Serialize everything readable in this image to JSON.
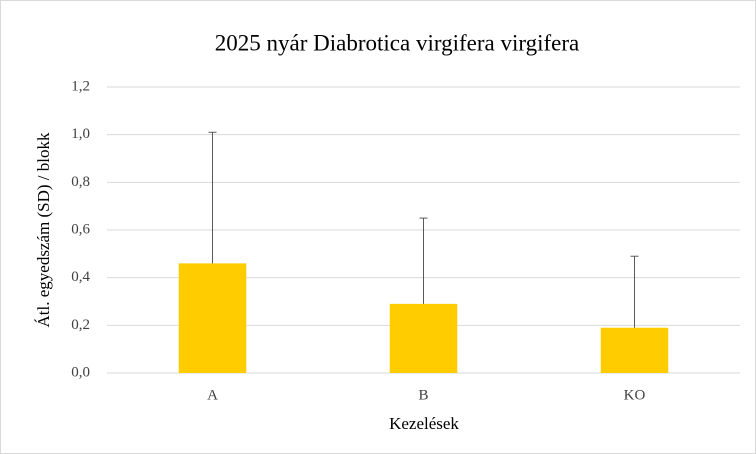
{
  "chart_data": {
    "type": "bar",
    "title": "2025 nyár Diabrotica virgifera virgifera",
    "x_label": "Kezelések",
    "y_label": "Átl. egyedszám (SD) / blokk",
    "categories": [
      "A",
      "B",
      "KO"
    ],
    "values": [
      0.46,
      0.29,
      0.19
    ],
    "errors": [
      0.55,
      0.36,
      0.3
    ],
    "color": "#ffcc00",
    "error_color": "#595959",
    "ylim": [
      0,
      1.2
    ],
    "yticks": [
      {
        "value": 0,
        "label": "0,0"
      },
      {
        "value": 0.2,
        "label": "0,2"
      },
      {
        "value": 0.4,
        "label": "0,4"
      },
      {
        "value": 0.6,
        "label": "0,6"
      },
      {
        "value": 0.8,
        "label": "0,8"
      },
      {
        "value": 1.0,
        "label": "1,0"
      },
      {
        "value": 1.2,
        "label": "1,2"
      }
    ],
    "grid": true
  }
}
